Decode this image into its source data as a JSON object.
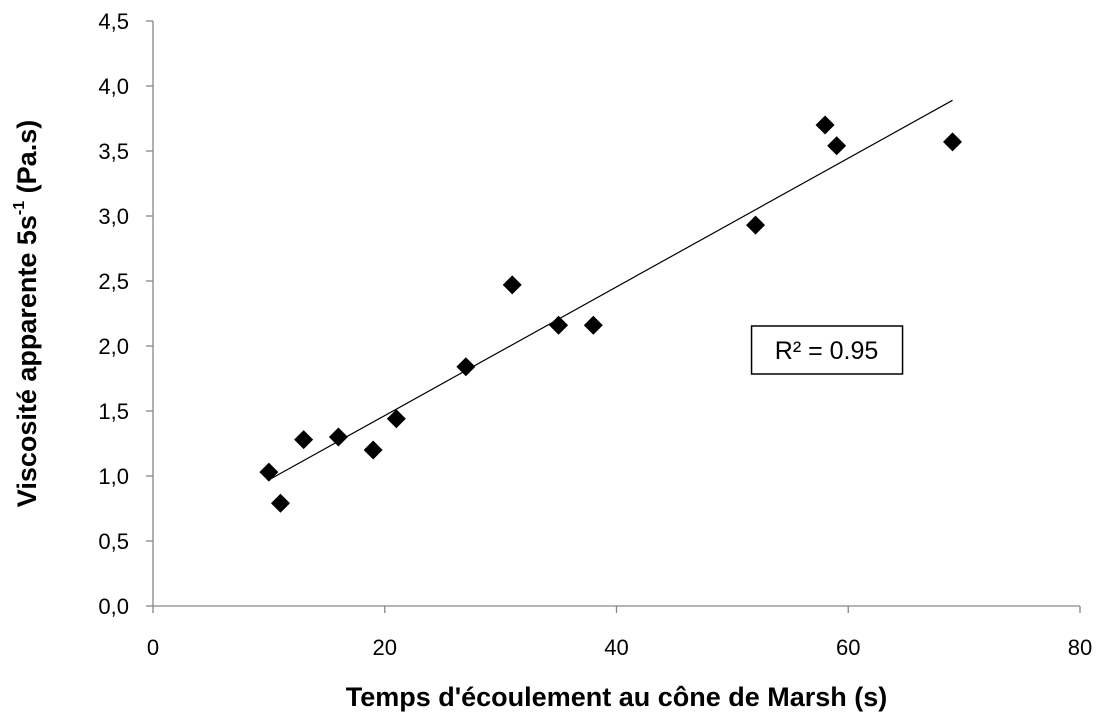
{
  "chart_data": {
    "type": "scatter",
    "xlabel": "Temps d'écoulement au cône de Marsh (s)",
    "ylabel": "Viscosité apparente 5s",
    "ylabel_superscript": "-1",
    "ylabel_unit": " (Pa.s)",
    "xlim": [
      0,
      80
    ],
    "ylim": [
      0,
      4.5
    ],
    "x_ticks": [
      0,
      20,
      40,
      60,
      80
    ],
    "x_tick_labels": [
      "0",
      "20",
      "40",
      "60",
      "80"
    ],
    "y_ticks": [
      0,
      0.5,
      1.0,
      1.5,
      2.0,
      2.5,
      3.0,
      3.5,
      4.0,
      4.5
    ],
    "y_tick_labels": [
      "0,0",
      "0,5",
      "1,0",
      "1,5",
      "2,0",
      "2,5",
      "3,0",
      "3,5",
      "4,0",
      "4,5"
    ],
    "grid": false,
    "marker": "diamond",
    "marker_color": "#000000",
    "series": [
      {
        "points": [
          {
            "x": 10,
            "y": 1.03
          },
          {
            "x": 11,
            "y": 0.79
          },
          {
            "x": 13,
            "y": 1.28
          },
          {
            "x": 16,
            "y": 1.3
          },
          {
            "x": 19,
            "y": 1.2
          },
          {
            "x": 21,
            "y": 1.44
          },
          {
            "x": 27,
            "y": 1.84
          },
          {
            "x": 31,
            "y": 2.47
          },
          {
            "x": 35,
            "y": 2.16
          },
          {
            "x": 38,
            "y": 2.16
          },
          {
            "x": 52,
            "y": 2.93
          },
          {
            "x": 58,
            "y": 3.7
          },
          {
            "x": 59,
            "y": 3.54
          },
          {
            "x": 69,
            "y": 3.57
          }
        ]
      }
    ],
    "trendline": {
      "type": "linear",
      "x_range": [
        10,
        69
      ],
      "y_at_start": 0.97,
      "y_at_end": 3.89
    },
    "annotation": {
      "text": "R² = 0.95",
      "anchor_x": 52,
      "anchor_y": 2.0
    }
  }
}
